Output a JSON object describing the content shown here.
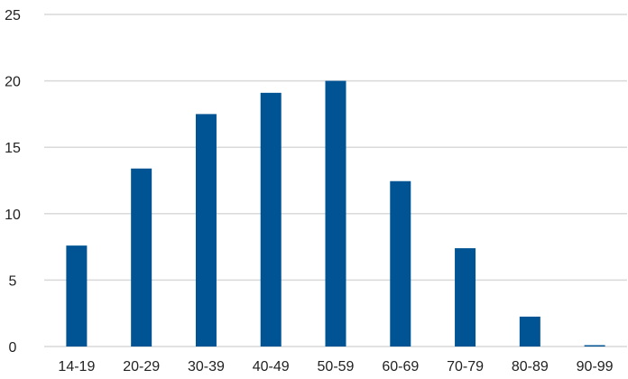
{
  "chart_data": {
    "type": "bar",
    "title": "",
    "xlabel": "",
    "ylabel": "",
    "categories": [
      "14-19",
      "20-29",
      "30-39",
      "40-49",
      "50-59",
      "60-69",
      "70-79",
      "80-89",
      "90-99"
    ],
    "values": [
      7.6,
      13.4,
      17.5,
      19.1,
      20.0,
      12.45,
      7.4,
      2.25,
      0.1
    ],
    "ylim": [
      0,
      25
    ],
    "yticks": [
      0,
      5,
      10,
      15,
      20,
      25
    ],
    "grid": true,
    "legend": "none",
    "colors": {
      "bar": "#005494",
      "grid": "#d9d9d9"
    }
  }
}
